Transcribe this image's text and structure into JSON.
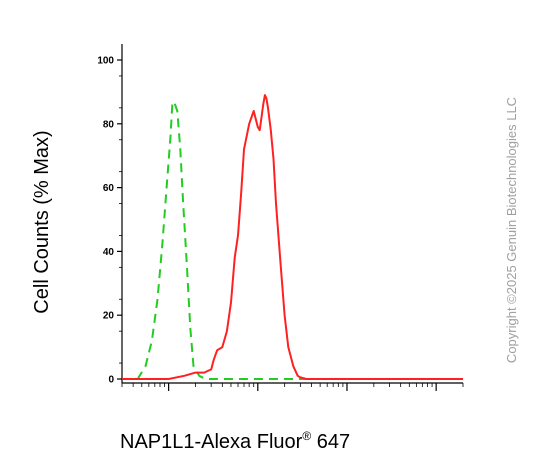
{
  "chart_data": {
    "type": "line",
    "xlabel": "NAP1L1-Alexa Fluor",
    "xlabel_sup": "®",
    "xlabel_suffix": " 647",
    "ylabel": "Cell Counts (% Max)",
    "ylim": [
      0,
      100
    ],
    "y_ticks": [
      "0",
      "20",
      "40",
      "60",
      "80",
      "100"
    ],
    "x_scale": "log",
    "xlim": [
      0.3,
      2000
    ],
    "grid": false,
    "series": [
      {
        "line_style": "dashed",
        "color": "#22cc22",
        "x": [
          0.3,
          0.45,
          0.55,
          0.65,
          0.75,
          0.85,
          0.95,
          1.05,
          1.1,
          1.15,
          1.25,
          1.35,
          1.45,
          1.6,
          1.75,
          1.9,
          2.2,
          2.6,
          3,
          4,
          10,
          100,
          1000,
          2000
        ],
        "values": [
          0,
          0,
          4,
          12,
          25,
          42,
          60,
          76,
          86,
          87,
          84,
          72,
          56,
          36,
          16,
          4,
          1,
          0,
          0,
          0,
          0,
          0,
          0,
          0
        ]
      },
      {
        "line_style": "solid",
        "color": "#ff2020",
        "x": [
          0.3,
          0.8,
          1,
          1.5,
          2,
          2.5,
          3,
          3.2,
          3.5,
          4,
          4.5,
          5,
          5.5,
          6,
          6.5,
          7,
          8,
          9,
          10,
          10.5,
          11,
          11.5,
          12,
          12.5,
          13,
          14,
          15,
          16,
          18,
          20,
          22,
          25,
          28,
          30,
          35,
          40,
          50,
          100,
          1000,
          2000
        ],
        "values": [
          0,
          0,
          0,
          1,
          2,
          2,
          3,
          6,
          9,
          10,
          15,
          24,
          38,
          45,
          58,
          72,
          80,
          84,
          79,
          78,
          82,
          86,
          89,
          88,
          85,
          78,
          69,
          55,
          36,
          20,
          10,
          4,
          1,
          0.5,
          0,
          0,
          0,
          0,
          0,
          0
        ]
      }
    ]
  },
  "copyright": "Copyright ©2025 Genuin Biotechnologies LLC"
}
